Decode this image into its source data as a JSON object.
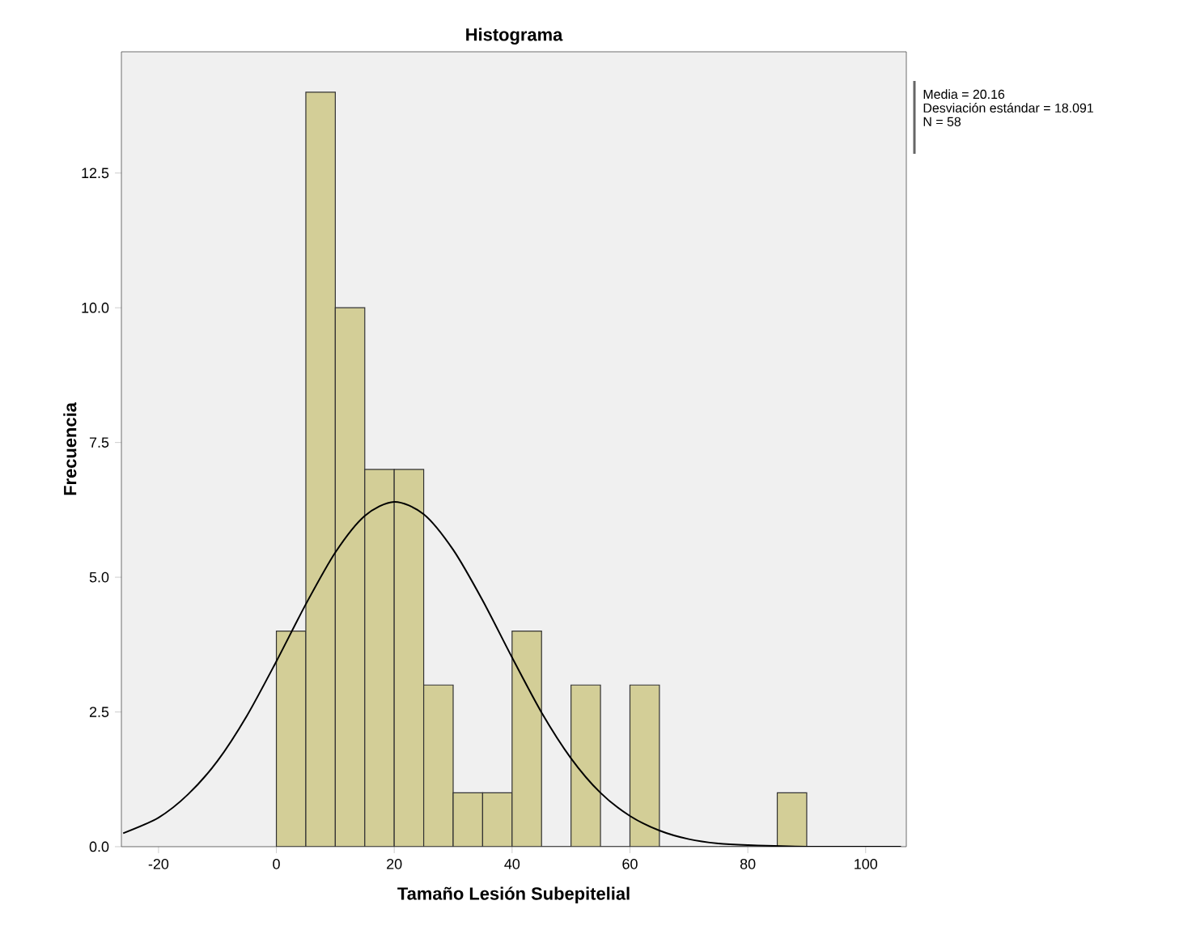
{
  "chart_data": {
    "type": "histogram",
    "title": "Histograma",
    "xlabel": "Tamaño Lesión Subepitelial",
    "ylabel": "Frecuencia",
    "bins": [
      0,
      5,
      10,
      15,
      20,
      25,
      30,
      35,
      40,
      45,
      50,
      55,
      60,
      65,
      70,
      75,
      80,
      85,
      90
    ],
    "values": [
      4,
      14,
      10,
      7,
      7,
      3,
      1,
      1,
      4,
      0,
      3,
      0,
      3,
      0,
      0,
      0,
      0,
      1
    ],
    "color": "#d3ce97",
    "series": [
      {
        "type": "line",
        "color": "#000000",
        "x": [
          -26,
          -20,
          -15,
          -10,
          -5,
          0,
          5,
          10,
          15,
          20,
          25,
          30,
          35,
          40,
          45,
          50,
          55,
          60,
          65,
          70,
          75,
          80,
          90,
          106
        ],
        "values": [
          0.25,
          0.54,
          0.97,
          1.59,
          2.43,
          3.44,
          4.5,
          5.46,
          6.14,
          6.4,
          6.17,
          5.51,
          4.57,
          3.51,
          2.49,
          1.64,
          1.0,
          0.57,
          0.3,
          0.14,
          0.06,
          0.03,
          0.0,
          0.0
        ]
      }
    ],
    "xlim": [
      -26.3,
      106.9
    ],
    "ylim": [
      0,
      14.75
    ],
    "xticks": [
      -20,
      0,
      20,
      40,
      60,
      80,
      100
    ],
    "yticks": [
      {
        "value": 0,
        "label": "0.0"
      },
      {
        "value": 2.5,
        "label": "2.5"
      },
      {
        "value": 5,
        "label": "5.0"
      },
      {
        "value": 7.5,
        "label": "7.5"
      },
      {
        "value": 10,
        "label": "10.0"
      },
      {
        "value": 12.5,
        "label": "12.5"
      }
    ],
    "annotations": [
      "Media = 20.16",
      "Desviación estándar = 18.091",
      "N = 58"
    ],
    "line_style": "solid"
  }
}
